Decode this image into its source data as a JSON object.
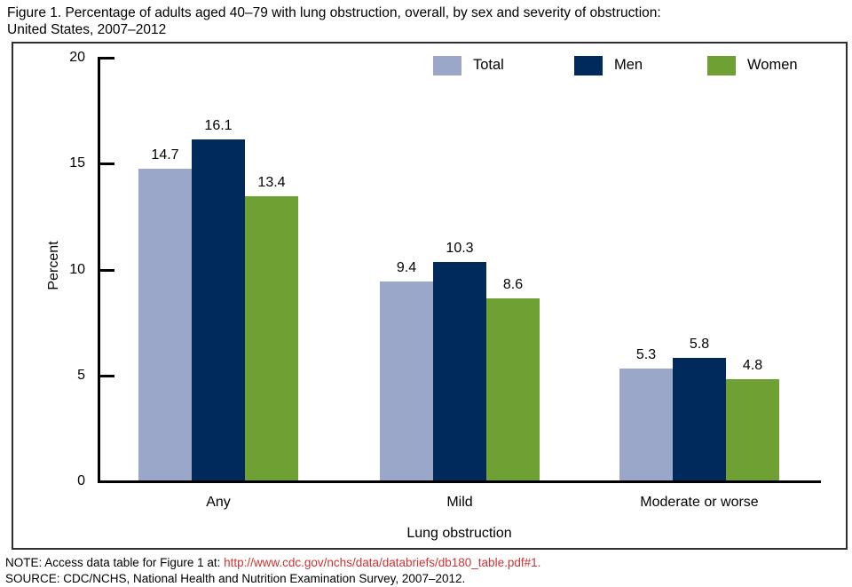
{
  "figure": {
    "title_line1": "Figure 1. Percentage of adults aged 40–79 with lung obstruction, overall, by sex and severity of obstruction:",
    "title_line2": "United States, 2007–2012"
  },
  "chart_data": {
    "type": "bar",
    "title": "Figure 1. Percentage of adults aged 40–79 with lung obstruction, overall, by sex and severity of obstruction: United States, 2007–2012",
    "categories": [
      "Any",
      "Mild",
      "Moderate or worse"
    ],
    "series": [
      {
        "name": "Total",
        "color": "#9aa7c9",
        "values": [
          14.7,
          9.4,
          5.3
        ]
      },
      {
        "name": "Men",
        "color": "#002a5c",
        "values": [
          16.1,
          10.3,
          5.8
        ]
      },
      {
        "name": "Women",
        "color": "#6fa033",
        "values": [
          13.4,
          8.6,
          4.8
        ]
      }
    ],
    "xlabel": "Lung obstruction",
    "ylabel": "Percent",
    "ylim": [
      0,
      20
    ],
    "yticks": [
      0,
      5,
      10,
      15,
      20
    ],
    "grid": false,
    "legend_position": "top",
    "bar_labels_decimals": 1
  },
  "notes": {
    "note_prefix": "NOTE: Access data table for Figure 1 at: ",
    "note_link_text": "http://www.cdc.gov/nchs/data/databriefs/db180_table.pdf#1.",
    "source_text": "SOURCE: CDC/NCHS, National Health and Nutrition Examination Survey, 2007–2012.",
    "link_color": "#cc3333"
  }
}
